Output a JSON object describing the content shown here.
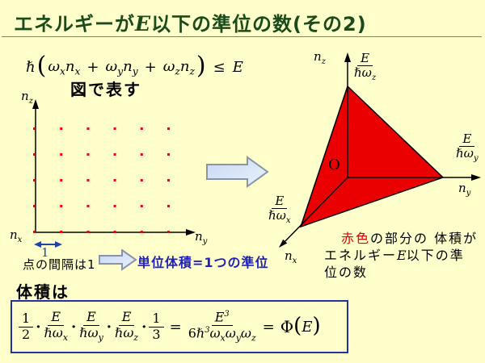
{
  "colors": {
    "background": "#FFFFCC",
    "title": "#1B4A1B",
    "rule": "#808080",
    "red_fill": "#EA0000",
    "dot": "#FF0000",
    "blue_label": "#2222BB",
    "accent_blue": "#2244AA",
    "arrow_fill_start": "#C9D6F2",
    "arrow_fill_end": "#E9F3FD",
    "arrow_stroke": "#8A94A8",
    "box_border": "#223399"
  },
  "title": {
    "prefix": "エネルギーが",
    "emph": "E",
    "suffix": "以下の準位の数(その2)"
  },
  "constraint": {
    "hbar": "ℏ",
    "open": "(",
    "terms": [
      {
        "omega": "ω",
        "omega_sub": "x",
        "n": "n",
        "n_sub": "x"
      },
      {
        "omega": "ω",
        "omega_sub": "y",
        "n": "n",
        "n_sub": "y"
      },
      {
        "omega": "ω",
        "omega_sub": "z",
        "n": "n",
        "n_sub": "z"
      }
    ],
    "plus": "+",
    "close": ")",
    "leq": "≤",
    "E": "E"
  },
  "caption_diagram": "図で表す",
  "dot_plot": {
    "columns": 6,
    "rows": 5,
    "y_axis_label": {
      "base": "n",
      "sub": "z"
    },
    "x_axis_label": {
      "base": "n",
      "sub": "y"
    },
    "origin_label": {
      "base": "n",
      "sub": "x"
    },
    "spacing_value": "1",
    "spacing_caption": "点の間隔は1"
  },
  "unit_note": "単位体積=1つの準位",
  "plot3d": {
    "origin": "O",
    "z_axis": {
      "name": "n",
      "name_sub": "z",
      "max_num": "E",
      "max_den": "ℏω",
      "max_den_sub": "z"
    },
    "y_axis": {
      "name": "n",
      "name_sub": "y",
      "max_num": "E",
      "max_den": "ℏω",
      "max_den_sub": "y"
    },
    "x_axis": {
      "name": "n",
      "name_sub": "x",
      "max_num": "E",
      "max_den": "ℏω",
      "max_den_sub": "x"
    }
  },
  "red_note": {
    "line1_red": "赤色",
    "line1_rest": "の部分の 体積が",
    "line2_pre": "エネルギー",
    "line2_E": "E",
    "line2_post": "以下の準",
    "line3": "位の数"
  },
  "volume_caption": "体積は",
  "volume_formula": {
    "f_half": {
      "num": "1",
      "den": "2"
    },
    "dot": "·",
    "f_x": {
      "num": "E",
      "den": "ℏω",
      "den_sub": "x"
    },
    "f_y": {
      "num": "E",
      "den": "ℏω",
      "den_sub": "y"
    },
    "f_z": {
      "num": "E",
      "den": "ℏω",
      "den_sub": "z"
    },
    "f_third": {
      "num": "1",
      "den": "3"
    },
    "equals": "=",
    "result": {
      "num_base": "E",
      "num_exp": "3",
      "den_coeff": "6ℏ",
      "den_exp": "3",
      "den_omegas": [
        {
          "omega": "ω",
          "sub": "x"
        },
        {
          "omega": "ω",
          "sub": "y"
        },
        {
          "omega": "ω",
          "sub": "z"
        }
      ]
    },
    "phi": "Φ",
    "open": "(",
    "E": "E",
    "close": ")"
  }
}
